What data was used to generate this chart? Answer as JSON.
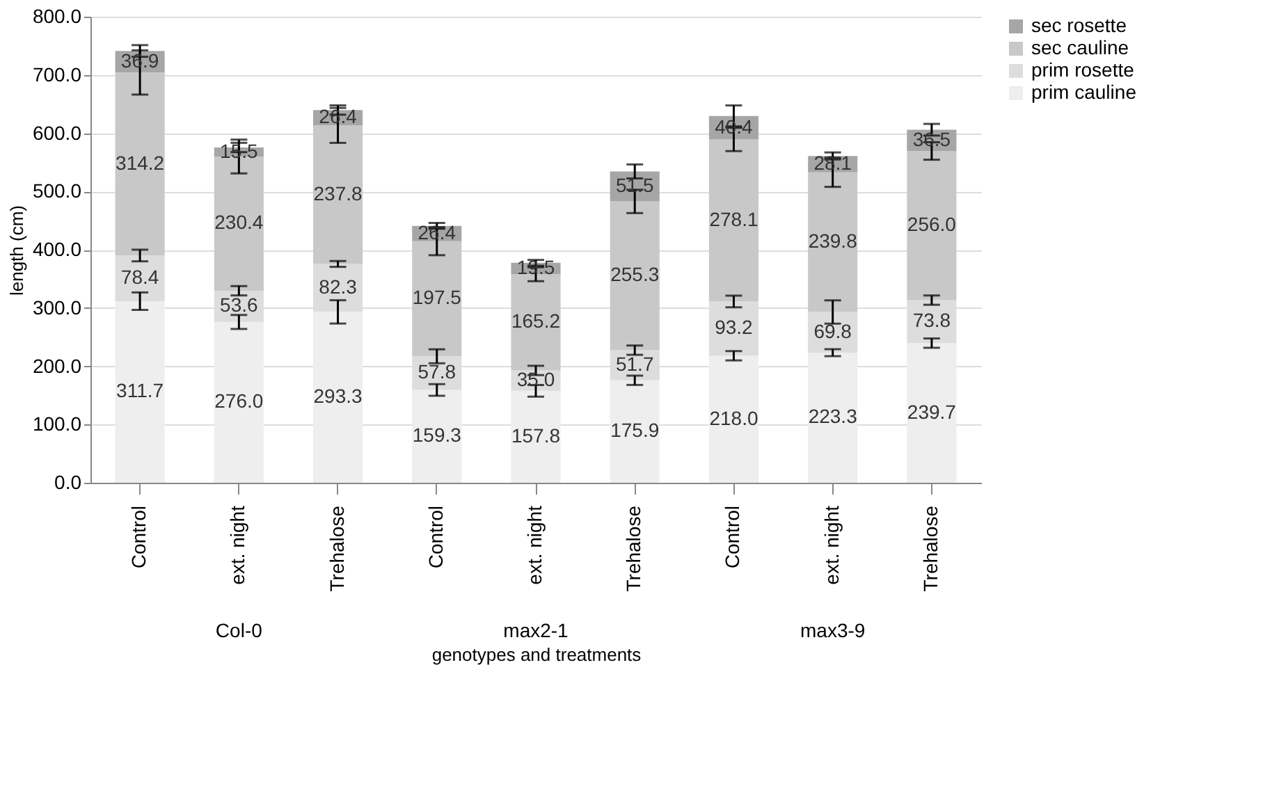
{
  "chart_data": {
    "type": "bar",
    "stacked": true,
    "xlabel": "genotypes and treatments",
    "ylabel": "length (cm)",
    "categories": [
      "Control",
      "ext. night",
      "Trehalose",
      "Control",
      "ext. night",
      "Trehalose",
      "Control",
      "ext. night",
      "Trehalose"
    ],
    "annotations": [
      "Col-0",
      "max2-1",
      "max3-9"
    ],
    "series": [
      {
        "name": "prim cauline",
        "color": "#eeeeee",
        "values": [
          311.7,
          276.0,
          293.3,
          159.3,
          157.8,
          175.9,
          218.0,
          223.3,
          239.7
        ],
        "value_labels": [
          "311.7",
          "276.0",
          "293.3",
          "159.3",
          "157.8",
          "175.9",
          "218.0",
          "223.3",
          "239.7"
        ],
        "errors": [
          15,
          12,
          20,
          10,
          10,
          8,
          8,
          6,
          8
        ]
      },
      {
        "name": "prim rosette",
        "color": "#dddddd",
        "values": [
          78.4,
          53.6,
          82.3,
          57.8,
          35.0,
          51.7,
          93.2,
          69.8,
          73.8
        ],
        "value_labels": [
          "78.4",
          "53.6",
          "82.3",
          "57.8",
          "35.0",
          "51.7",
          "93.2",
          "69.8",
          "73.8"
        ],
        "errors": [
          10,
          8,
          5,
          12,
          8,
          8,
          10,
          20,
          8
        ]
      },
      {
        "name": "sec cauline",
        "color": "#c8c8c8",
        "values": [
          314.2,
          230.4,
          237.8,
          197.5,
          165.2,
          255.3,
          278.1,
          239.8,
          256.0
        ],
        "value_labels": [
          "314.2",
          "230.4",
          "237.8",
          "197.5",
          "165.2",
          "255.3",
          "278.1",
          "239.8",
          "256.0"
        ],
        "errors": [
          38,
          29,
          30,
          24,
          12,
          20,
          20,
          25,
          15
        ]
      },
      {
        "name": "sec rosette",
        "color": "#a6a6a6",
        "values": [
          36.9,
          15.5,
          26.4,
          26.4,
          19.5,
          51.5,
          40.4,
          28.1,
          36.5
        ],
        "value_labels": [
          "36.9",
          "15.5",
          "26.4",
          "26.4",
          "19.5",
          "51.5",
          "40.4",
          "28.1",
          "36.5"
        ],
        "errors": [
          10,
          8,
          8,
          5,
          5,
          12,
          18,
          6,
          10
        ]
      }
    ],
    "ylim": [
      0,
      800
    ],
    "yticks": [
      {
        "value": 0,
        "label": "0.0"
      },
      {
        "value": 100,
        "label": "100.0"
      },
      {
        "value": 200,
        "label": "200.0"
      },
      {
        "value": 300,
        "label": "300.0"
      },
      {
        "value": 400,
        "label": "400.0"
      },
      {
        "value": 500,
        "label": "500.0"
      },
      {
        "value": 600,
        "label": "600.0"
      },
      {
        "value": 700,
        "label": "700.0"
      },
      {
        "value": 800,
        "label": "800.0"
      }
    ],
    "grid": "y",
    "legend": "right"
  }
}
